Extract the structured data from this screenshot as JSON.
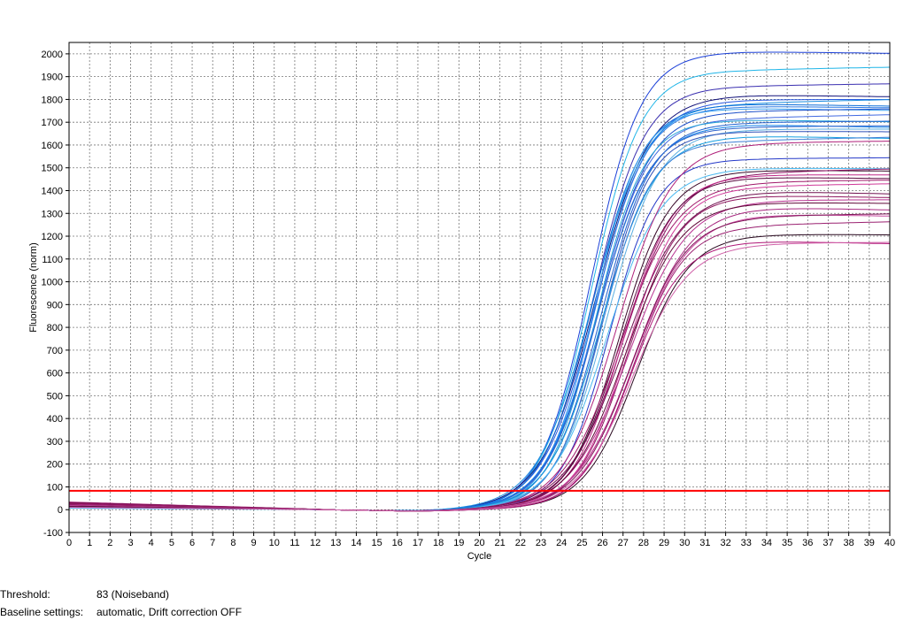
{
  "chart_data": {
    "type": "line",
    "title": "",
    "xlabel": "Cycle",
    "ylabel": "Fluorescence (norm)",
    "xlim": [
      0,
      40
    ],
    "ylim": [
      -100,
      2050
    ],
    "x_ticks": [
      0,
      1,
      2,
      3,
      4,
      5,
      6,
      7,
      8,
      9,
      10,
      11,
      12,
      13,
      14,
      15,
      16,
      17,
      18,
      19,
      20,
      21,
      22,
      23,
      24,
      25,
      26,
      27,
      28,
      29,
      30,
      31,
      32,
      33,
      34,
      35,
      36,
      37,
      38,
      39,
      40
    ],
    "y_ticks": [
      -100,
      0,
      100,
      200,
      300,
      400,
      500,
      600,
      700,
      800,
      900,
      1000,
      1100,
      1200,
      1300,
      1400,
      1500,
      1600,
      1700,
      1800,
      1900,
      2000
    ],
    "grid": true,
    "legend": "none",
    "threshold": {
      "value": 83,
      "color": "#ff0000"
    },
    "series_groups": [
      {
        "color_family": "blue",
        "midpoint_cycle_range": [
          25.2,
          26.4
        ],
        "slope_range": [
          0.75,
          0.88
        ],
        "plateaus": [
          2010,
          1930,
          1860,
          1820,
          1800,
          1785,
          1780,
          1770,
          1760,
          1750,
          1720,
          1710,
          1700,
          1690,
          1680,
          1670,
          1660,
          1640,
          1620,
          1540,
          1500
        ],
        "colors": [
          "#1a3fd8",
          "#1fb5e8",
          "#3a2fb0",
          "#12127a",
          "#2a5ae0",
          "#1e90e0",
          "#0e6fd8",
          "#2c7be5",
          "#3aa0f0",
          "#1b4fc9",
          "#4169e1",
          "#2aa6d8",
          "#1c5fd0",
          "#0f80e8",
          "#3366cc",
          "#5aaee0",
          "#2d4fb8",
          "#17a0e0",
          "#3b7fd6",
          "#2438c8",
          "#48b8f0"
        ]
      },
      {
        "color_family": "magenta",
        "midpoint_cycle_range": [
          26.6,
          27.9
        ],
        "slope_range": [
          0.7,
          0.82
        ],
        "plateaus": [
          1610,
          1490,
          1480,
          1470,
          1460,
          1440,
          1420,
          1400,
          1380,
          1360,
          1350,
          1330,
          1300,
          1290,
          1250,
          1210,
          1180,
          1170
        ],
        "colors": [
          "#b0207a",
          "#3a0a2a",
          "#8a1060",
          "#c02888",
          "#5a0a40",
          "#a0186a",
          "#d03898",
          "#701050",
          "#901860",
          "#b83090",
          "#600838",
          "#a82880",
          "#c84aa0",
          "#801458",
          "#9a2070",
          "#2a0a20",
          "#b01878",
          "#d060a8"
        ]
      }
    ]
  },
  "footer": {
    "threshold_label": "Threshold:",
    "threshold_value": "83 (Noiseband)",
    "baseline_label": "Baseline settings:",
    "baseline_value": "automatic, Drift correction OFF"
  }
}
